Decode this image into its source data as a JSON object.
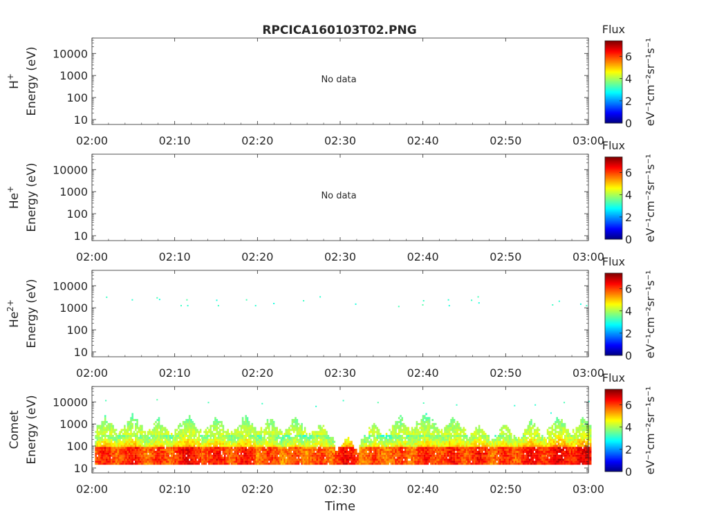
{
  "title": "RPCICA160103T02.PNG",
  "colorbar": {
    "title": "Flux",
    "units": "eV⁻¹cm⁻²sr⁻¹s⁻¹",
    "ticks": [
      0,
      2,
      4,
      6
    ],
    "range": [
      0,
      7.4
    ]
  },
  "chart_data": [
    {
      "type": "heatmap",
      "species": "H",
      "species_sup": "+",
      "ylabel_line2": "Energy (eV)",
      "xlabel": "",
      "x_ticks": [
        "02:00",
        "02:10",
        "02:20",
        "02:30",
        "02:40",
        "02:50",
        "03:00"
      ],
      "y_ticks": [
        10,
        100,
        1000,
        10000
      ],
      "ylim": [
        6,
        50000
      ],
      "message": "No data",
      "cells": []
    },
    {
      "type": "heatmap",
      "species": "He",
      "species_sup": "+",
      "ylabel_line2": "Energy (eV)",
      "xlabel": "",
      "x_ticks": [
        "02:00",
        "02:10",
        "02:20",
        "02:30",
        "02:40",
        "02:50",
        "03:00"
      ],
      "y_ticks": [
        10,
        100,
        1000,
        10000
      ],
      "ylim": [
        6,
        50000
      ],
      "message": "No data",
      "cells": []
    },
    {
      "type": "heatmap",
      "species": "He",
      "species_sup": "2+",
      "ylabel_line2": "Energy (eV)",
      "xlabel": "",
      "x_ticks": [
        "02:00",
        "02:10",
        "02:20",
        "02:30",
        "02:40",
        "02:50",
        "03:00"
      ],
      "y_ticks": [
        10,
        100,
        1000,
        10000
      ],
      "ylim": [
        6,
        50000
      ],
      "message": "",
      "cells": [
        {
          "t": 1.7,
          "e": 2900,
          "v": 3.2
        },
        {
          "t": 4.8,
          "e": 2200,
          "v": 3.1
        },
        {
          "t": 7.8,
          "e": 2700,
          "v": 3.3
        },
        {
          "t": 8.1,
          "e": 2300,
          "v": 3.0
        },
        {
          "t": 10.7,
          "e": 1200,
          "v": 3.2
        },
        {
          "t": 11.4,
          "e": 2200,
          "v": 3.4
        },
        {
          "t": 11.5,
          "e": 1200,
          "v": 3.1
        },
        {
          "t": 15.0,
          "e": 2100,
          "v": 3.0
        },
        {
          "t": 15.2,
          "e": 1200,
          "v": 3.2
        },
        {
          "t": 18.6,
          "e": 2200,
          "v": 3.3
        },
        {
          "t": 19.7,
          "e": 1200,
          "v": 3.1
        },
        {
          "t": 21.9,
          "e": 1500,
          "v": 3.0
        },
        {
          "t": 25.5,
          "e": 2000,
          "v": 3.2
        },
        {
          "t": 27.5,
          "e": 3000,
          "v": 3.1
        },
        {
          "t": 31.8,
          "e": 1400,
          "v": 3.0
        },
        {
          "t": 37.0,
          "e": 1100,
          "v": 3.3
        },
        {
          "t": 40.0,
          "e": 2000,
          "v": 3.2
        },
        {
          "t": 39.9,
          "e": 1300,
          "v": 3.4
        },
        {
          "t": 43.0,
          "e": 2200,
          "v": 3.1
        },
        {
          "t": 43.1,
          "e": 1200,
          "v": 3.0
        },
        {
          "t": 45.8,
          "e": 2100,
          "v": 3.2
        },
        {
          "t": 46.6,
          "e": 3000,
          "v": 3.3
        },
        {
          "t": 46.7,
          "e": 1600,
          "v": 3.0
        },
        {
          "t": 55.6,
          "e": 1300,
          "v": 3.2
        },
        {
          "t": 56.4,
          "e": 1900,
          "v": 3.1
        },
        {
          "t": 59.0,
          "e": 1400,
          "v": 3.0
        },
        {
          "t": 59.7,
          "e": 1200,
          "v": 3.2
        }
      ]
    },
    {
      "type": "heatmap",
      "species": "Comet",
      "species_sup": "",
      "ylabel_line2": "Energy (eV)",
      "xlabel": "Time",
      "x_ticks": [
        "02:00",
        "02:10",
        "02:20",
        "02:30",
        "02:40",
        "02:50",
        "03:00"
      ],
      "y_ticks": [
        10,
        100,
        1000,
        10000
      ],
      "ylim": [
        6,
        50000
      ],
      "message": "",
      "bursts": [
        {
          "t": 1.5,
          "top": 2500,
          "max": 6.8
        },
        {
          "t": 4.8,
          "top": 2600,
          "max": 6.9
        },
        {
          "t": 8.0,
          "top": 2000,
          "max": 6.7
        },
        {
          "t": 11.5,
          "top": 3000,
          "max": 7.1
        },
        {
          "t": 15.0,
          "top": 2500,
          "max": 6.9
        },
        {
          "t": 18.5,
          "top": 2800,
          "max": 6.9
        },
        {
          "t": 21.5,
          "top": 2200,
          "max": 6.6
        },
        {
          "t": 24.5,
          "top": 2300,
          "max": 6.5
        },
        {
          "t": 27.5,
          "top": 1300,
          "max": 6.6
        },
        {
          "t": 30.7,
          "top": 300,
          "max": 7.0
        },
        {
          "t": 34.0,
          "top": 1200,
          "max": 6.5
        },
        {
          "t": 37.2,
          "top": 2500,
          "max": 6.6
        },
        {
          "t": 40.3,
          "top": 4000,
          "max": 6.8
        },
        {
          "t": 43.5,
          "top": 2800,
          "max": 6.9
        },
        {
          "t": 46.7,
          "top": 1000,
          "max": 6.9
        },
        {
          "t": 49.8,
          "top": 1100,
          "max": 6.7
        },
        {
          "t": 53.0,
          "top": 1500,
          "max": 7.0
        },
        {
          "t": 56.3,
          "top": 2500,
          "max": 7.2
        },
        {
          "t": 59.4,
          "top": 2200,
          "max": 7.2
        }
      ],
      "extra_cells": [
        {
          "t": 1.6,
          "e": 11000,
          "v": 3.3
        },
        {
          "t": 7.8,
          "e": 12000,
          "v": 3.4
        },
        {
          "t": 14.0,
          "e": 9000,
          "v": 3.3
        },
        {
          "t": 20.5,
          "e": 8000,
          "v": 3.2
        },
        {
          "t": 27.0,
          "e": 6000,
          "v": 3.1
        },
        {
          "t": 30.3,
          "e": 11000,
          "v": 3.2
        },
        {
          "t": 34.5,
          "e": 9000,
          "v": 3.4
        },
        {
          "t": 40.0,
          "e": 8500,
          "v": 3.3
        },
        {
          "t": 44.0,
          "e": 7000,
          "v": 3.2
        },
        {
          "t": 51.0,
          "e": 6500,
          "v": 3.1
        },
        {
          "t": 53.5,
          "e": 7000,
          "v": 3.1
        },
        {
          "t": 55.4,
          "e": 3000,
          "v": 3.0
        },
        {
          "t": 57.0,
          "e": 9000,
          "v": 3.3
        },
        {
          "t": 60.0,
          "e": 10000,
          "v": 3.1
        }
      ]
    }
  ]
}
